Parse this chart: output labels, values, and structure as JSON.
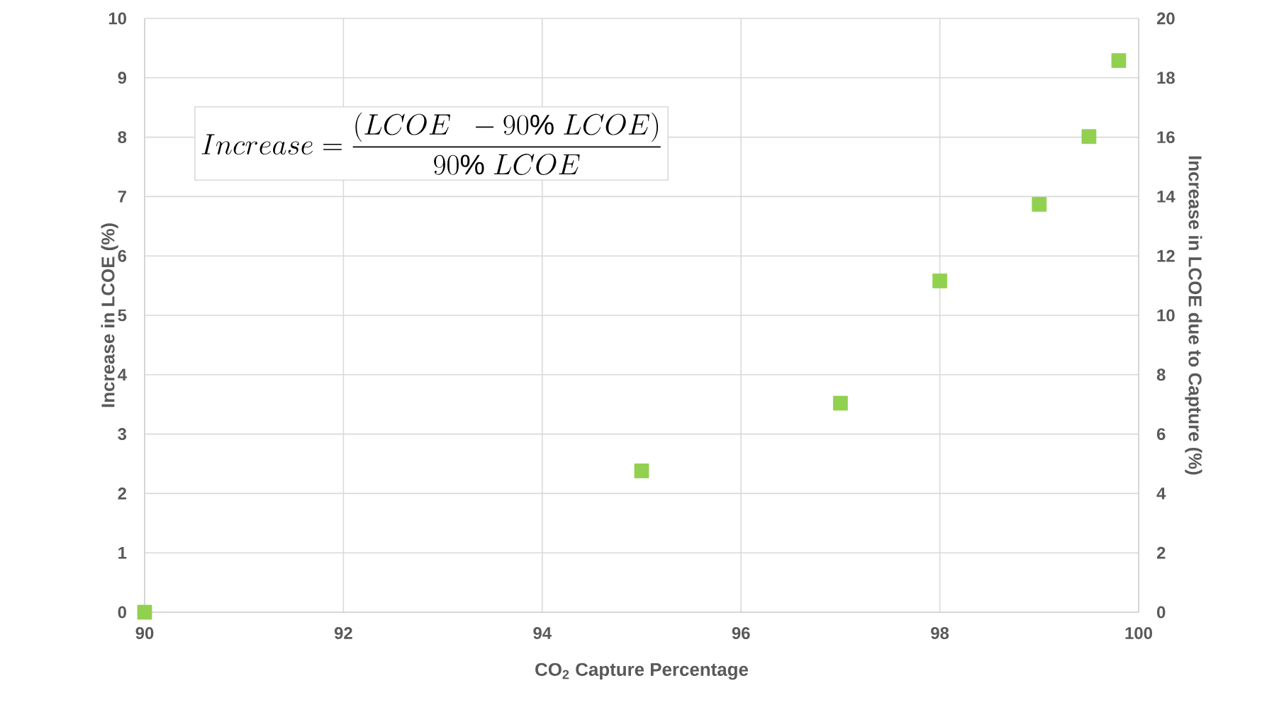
{
  "chart_data": {
    "type": "scatter",
    "xlabel": "CO$_{2}$ Capture Percentage",
    "ylabel": "Increase in LCOE  (%)",
    "y2label": "Increase in LCOE due to Capture (%)",
    "x": [
      90,
      95,
      97,
      98,
      99,
      99.5,
      99.8
    ],
    "series": [
      {
        "color": "#92d050",
        "values": [
          0,
          2.38,
          3.52,
          5.58,
          6.87,
          8.01,
          9.29
        ]
      }
    ],
    "xlim": [
      90,
      100
    ],
    "xticks": [
      90,
      92,
      94,
      96,
      98,
      100
    ],
    "ylim": [
      0,
      10
    ],
    "yticks": [
      0,
      1,
      2,
      3,
      4,
      5,
      6,
      7,
      8,
      9,
      10
    ],
    "y2lim": [
      0,
      20
    ],
    "y2ticks": [
      0,
      2,
      4,
      6,
      8,
      10,
      12,
      14,
      16,
      18,
      20
    ],
    "annotations": [
      "Increase=\\frac{(LCOE\\ \\ -90\\%\\ LCOE)}{90\\%\\ LCOE}"
    ],
    "grid": true,
    "marker": "square"
  }
}
